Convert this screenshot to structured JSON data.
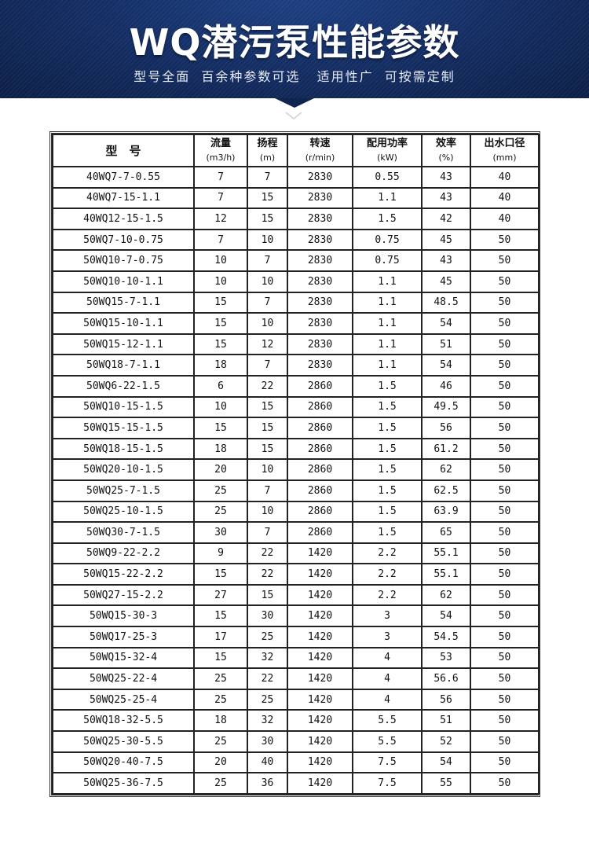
{
  "header": {
    "title": "WQ潜污泵性能参数",
    "subtitle": "型号全面  百余种参数可选   适用性广  可按需定制",
    "colors": {
      "banner": "#132c60",
      "text": "#ffffff"
    }
  },
  "table": {
    "columns": [
      {
        "label": "型　号",
        "unit": ""
      },
      {
        "label": "流量",
        "unit": "(m3/h)"
      },
      {
        "label": "扬程",
        "unit": "(m)"
      },
      {
        "label": "转速",
        "unit": "(r/min)"
      },
      {
        "label": "配用功率",
        "unit": "(kW)"
      },
      {
        "label": "效率",
        "unit": "(%)"
      },
      {
        "label": "出水口径",
        "unit": "(mm)"
      }
    ],
    "rows": [
      [
        "40WQ7-7-0.55",
        "7",
        "7",
        "2830",
        "0.55",
        "43",
        "40"
      ],
      [
        "40WQ7-15-1.1",
        "7",
        "15",
        "2830",
        "1.1",
        "43",
        "40"
      ],
      [
        "40WQ12-15-1.5",
        "12",
        "15",
        "2830",
        "1.5",
        "42",
        "40"
      ],
      [
        "50WQ7-10-0.75",
        "7",
        "10",
        "2830",
        "0.75",
        "45",
        "50"
      ],
      [
        "50WQ10-7-0.75",
        "10",
        "7",
        "2830",
        "0.75",
        "43",
        "50"
      ],
      [
        "50WQ10-10-1.1",
        "10",
        "10",
        "2830",
        "1.1",
        "45",
        "50"
      ],
      [
        "50WQ15-7-1.1",
        "15",
        "7",
        "2830",
        "1.1",
        "48.5",
        "50"
      ],
      [
        "50WQ15-10-1.1",
        "15",
        "10",
        "2830",
        "1.1",
        "54",
        "50"
      ],
      [
        "50WQ15-12-1.1",
        "15",
        "12",
        "2830",
        "1.1",
        "51",
        "50"
      ],
      [
        "50WQ18-7-1.1",
        "18",
        "7",
        "2830",
        "1.1",
        "54",
        "50"
      ],
      [
        "50WQ6-22-1.5",
        "6",
        "22",
        "2860",
        "1.5",
        "46",
        "50"
      ],
      [
        "50WQ10-15-1.5",
        "10",
        "15",
        "2860",
        "1.5",
        "49.5",
        "50"
      ],
      [
        "50WQ15-15-1.5",
        "15",
        "15",
        "2860",
        "1.5",
        "56",
        "50"
      ],
      [
        "50WQ18-15-1.5",
        "18",
        "15",
        "2860",
        "1.5",
        "61.2",
        "50"
      ],
      [
        "50WQ20-10-1.5",
        "20",
        "10",
        "2860",
        "1.5",
        "62",
        "50"
      ],
      [
        "50WQ25-7-1.5",
        "25",
        "7",
        "2860",
        "1.5",
        "62.5",
        "50"
      ],
      [
        "50WQ25-10-1.5",
        "25",
        "10",
        "2860",
        "1.5",
        "63.9",
        "50"
      ],
      [
        "50WQ30-7-1.5",
        "30",
        "7",
        "2860",
        "1.5",
        "65",
        "50"
      ],
      [
        "50WQ9-22-2.2",
        "9",
        "22",
        "1420",
        "2.2",
        "55.1",
        "50"
      ],
      [
        "50WQ15-22-2.2",
        "15",
        "22",
        "1420",
        "2.2",
        "55.1",
        "50"
      ],
      [
        "50WQ27-15-2.2",
        "27",
        "15",
        "1420",
        "2.2",
        "62",
        "50"
      ],
      [
        "50WQ15-30-3",
        "15",
        "30",
        "1420",
        "3",
        "54",
        "50"
      ],
      [
        "50WQ17-25-3",
        "17",
        "25",
        "1420",
        "3",
        "54.5",
        "50"
      ],
      [
        "50WQ15-32-4",
        "15",
        "32",
        "1420",
        "4",
        "53",
        "50"
      ],
      [
        "50WQ25-22-4",
        "25",
        "22",
        "1420",
        "4",
        "56.6",
        "50"
      ],
      [
        "50WQ25-25-4",
        "25",
        "25",
        "1420",
        "4",
        "56",
        "50"
      ],
      [
        "50WQ18-32-5.5",
        "18",
        "32",
        "1420",
        "5.5",
        "51",
        "50"
      ],
      [
        "50WQ25-30-5.5",
        "25",
        "30",
        "1420",
        "5.5",
        "52",
        "50"
      ],
      [
        "50WQ20-40-7.5",
        "20",
        "40",
        "1420",
        "7.5",
        "54",
        "50"
      ],
      [
        "50WQ25-36-7.5",
        "25",
        "36",
        "1420",
        "7.5",
        "55",
        "50"
      ]
    ]
  }
}
